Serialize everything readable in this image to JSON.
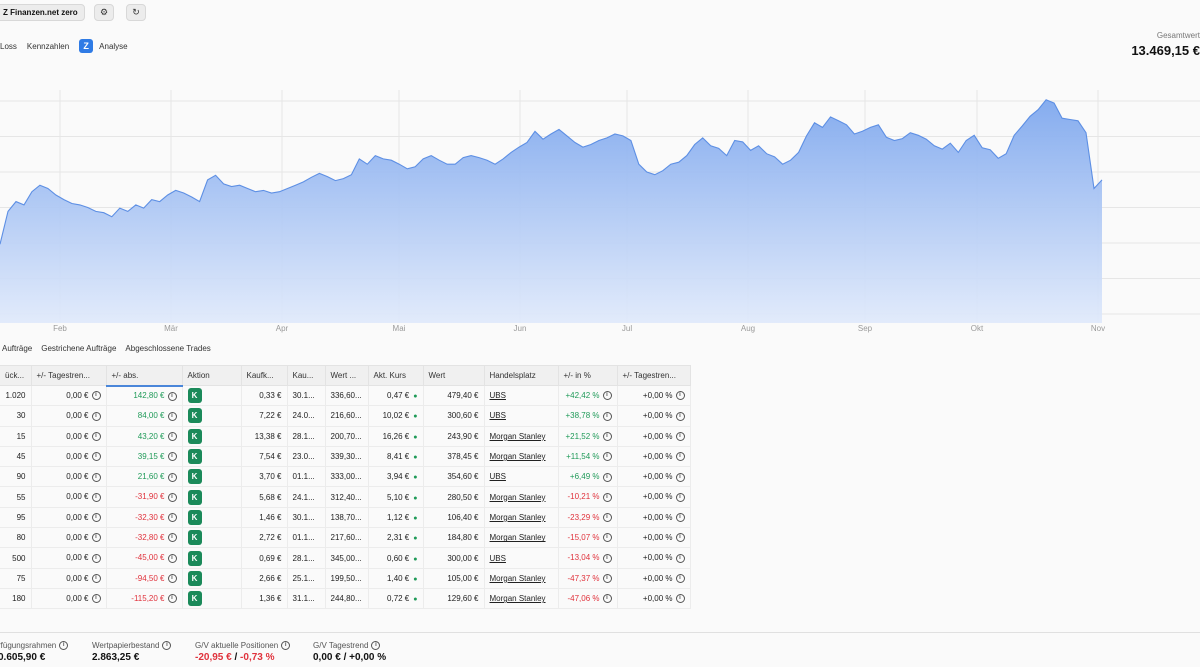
{
  "header": {
    "account_label": "Z Finanzen.net zero",
    "settings_icon": "gear-icon",
    "refresh_icon": "refresh-icon",
    "nav": [
      "Loss",
      "Kennzahlen",
      "Analyse"
    ],
    "analyse_logo_letter": "Z",
    "total_label": "Gesamtwert",
    "total_value": "13.469,15 €"
  },
  "chart_data": {
    "type": "area",
    "x_labels": [
      "Feb",
      "Mär",
      "Apr",
      "Mai",
      "Jun",
      "Jul",
      "Aug",
      "Sep",
      "Okt",
      "Nov"
    ],
    "color": "#7fa8ee",
    "grid": true,
    "values": [
      13140,
      13190,
      13205,
      13200,
      13220,
      13230,
      13225,
      13215,
      13208,
      13202,
      13200,
      13196,
      13190,
      13188,
      13182,
      13195,
      13190,
      13200,
      13195,
      13208,
      13205,
      13215,
      13222,
      13218,
      13212,
      13205,
      13238,
      13245,
      13232,
      13228,
      13230,
      13225,
      13220,
      13222,
      13218,
      13220,
      13225,
      13230,
      13235,
      13242,
      13248,
      13243,
      13237,
      13240,
      13246,
      13270,
      13262,
      13275,
      13270,
      13268,
      13262,
      13255,
      13258,
      13270,
      13275,
      13268,
      13262,
      13262,
      13272,
      13275,
      13272,
      13268,
      13262,
      13270,
      13280,
      13288,
      13295,
      13312,
      13300,
      13308,
      13315,
      13305,
      13295,
      13288,
      13292,
      13298,
      13302,
      13308,
      13305,
      13298,
      13262,
      13250,
      13246,
      13252,
      13262,
      13265,
      13275,
      13292,
      13302,
      13290,
      13286,
      13275,
      13298,
      13296,
      13283,
      13290,
      13278,
      13273,
      13262,
      13268,
      13280,
      13305,
      13325,
      13318,
      13334,
      13328,
      13322,
      13308,
      13312,
      13318,
      13322,
      13303,
      13298,
      13301,
      13310,
      13306,
      13300,
      13290,
      13285,
      13294,
      13280,
      13298,
      13306,
      13287,
      13284,
      13271,
      13278,
      13306,
      13320,
      13335,
      13345,
      13360,
      13355,
      13332,
      13330,
      13328,
      13310,
      13225,
      13238
    ]
  },
  "tabs": [
    "Aufträge",
    "Gestrichene Aufträge",
    "Abgeschlossene Trades"
  ],
  "table": {
    "headers": [
      "ück...",
      "+/- Tagestren...",
      "+/- abs.",
      "Aktion",
      "Kaufk...",
      "Kau...",
      "Wert ...",
      "Akt. Kurs",
      "Wert",
      "Handelsplatz",
      "+/- in %",
      "+/- Tagestren..."
    ],
    "rows": [
      [
        "1.020",
        "0,00 €",
        "142,80 €",
        "K",
        "0,33 €",
        "30.1...",
        "336,60...",
        "0,47 €",
        "479,40 €",
        "UBS",
        "+42,42 %",
        "+0,00 %"
      ],
      [
        "30",
        "0,00 €",
        "84,00 €",
        "K",
        "7,22 €",
        "24.0...",
        "216,60...",
        "10,02 €",
        "300,60 €",
        "UBS",
        "+38,78 %",
        "+0,00 %"
      ],
      [
        "15",
        "0,00 €",
        "43,20 €",
        "K",
        "13,38 €",
        "28.1...",
        "200,70...",
        "16,26 €",
        "243,90 €",
        "Morgan Stanley",
        "+21,52 %",
        "+0,00 %"
      ],
      [
        "45",
        "0,00 €",
        "39,15 €",
        "K",
        "7,54 €",
        "23.0...",
        "339,30...",
        "8,41 €",
        "378,45 €",
        "Morgan Stanley",
        "+11,54 %",
        "+0,00 %"
      ],
      [
        "90",
        "0,00 €",
        "21,60 €",
        "K",
        "3,70 €",
        "01.1...",
        "333,00...",
        "3,94 €",
        "354,60 €",
        "UBS",
        "+6,49 %",
        "+0,00 %"
      ],
      [
        "55",
        "0,00 €",
        "-31,90 €",
        "K",
        "5,68 €",
        "24.1...",
        "312,40...",
        "5,10 €",
        "280,50 €",
        "Morgan Stanley",
        "-10,21 %",
        "+0,00 %"
      ],
      [
        "95",
        "0,00 €",
        "-32,30 €",
        "K",
        "1,46 €",
        "30.1...",
        "138,70...",
        "1,12 €",
        "106,40 €",
        "Morgan Stanley",
        "-23,29 %",
        "+0,00 %"
      ],
      [
        "80",
        "0,00 €",
        "-32,80 €",
        "K",
        "2,72 €",
        "01.1...",
        "217,60...",
        "2,31 €",
        "184,80 €",
        "Morgan Stanley",
        "-15,07 %",
        "+0,00 %"
      ],
      [
        "500",
        "0,00 €",
        "-45,00 €",
        "K",
        "0,69 €",
        "28.1...",
        "345,00...",
        "0,60 €",
        "300,00 €",
        "UBS",
        "-13,04 %",
        "+0,00 %"
      ],
      [
        "75",
        "0,00 €",
        "-94,50 €",
        "K",
        "2,66 €",
        "25.1...",
        "199,50...",
        "1,40 €",
        "105,00 €",
        "Morgan Stanley",
        "-47,37 %",
        "+0,00 %"
      ],
      [
        "180",
        "0,00 €",
        "-115,20 €",
        "K",
        "1,36 €",
        "31.1...",
        "244,80...",
        "0,72 €",
        "129,60 €",
        "Morgan Stanley",
        "-47,06 %",
        "+0,00 %"
      ]
    ]
  },
  "footer": {
    "available_label": "rfügungsrahmen",
    "available_value": "0.605,90 €",
    "securities_label": "Wertpapierbestand",
    "securities_value": "2.863,25 €",
    "pl_label": "G/V aktuelle Positionen",
    "pl_abs": "-20,95 €",
    "pl_sep": " / ",
    "pl_pct": "-0,73 %",
    "trend_label": "G/V Tagestrend",
    "trend_value": "0,00 € / +0,00 %"
  }
}
